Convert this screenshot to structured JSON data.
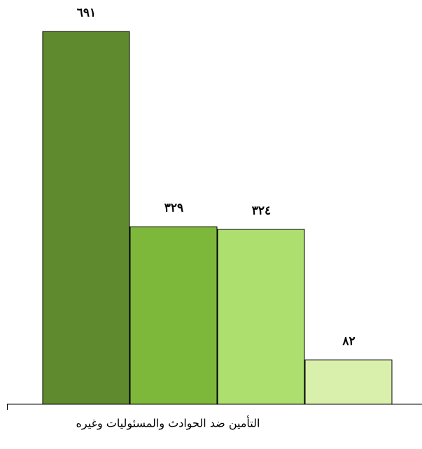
{
  "chart_data": {
    "type": "bar",
    "categories": [
      "التأمين ضد الحوادث والمسئوليات وغيره"
    ],
    "series": [
      {
        "color": "#5f8a2e",
        "values": [
          691
        ],
        "value_labels": [
          "٦٩١"
        ]
      },
      {
        "color": "#7db83a",
        "values": [
          329
        ],
        "value_labels": [
          "٣٢٩"
        ]
      },
      {
        "color": "#addf6f",
        "values": [
          324
        ],
        "value_labels": [
          "٣٢٤"
        ]
      },
      {
        "color": "#d9efac",
        "values": [
          82
        ],
        "value_labels": [
          "٨٢"
        ]
      }
    ]
  }
}
